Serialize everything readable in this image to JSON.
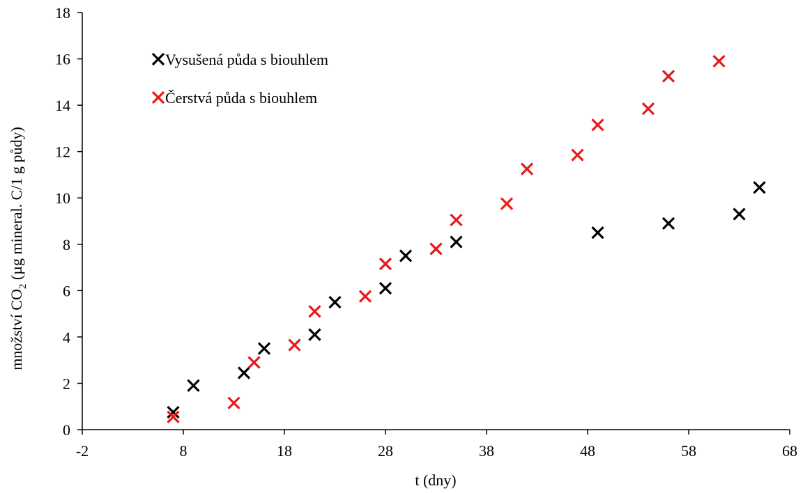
{
  "chart_data": {
    "type": "scatter",
    "xlabel": "t (dny)",
    "ylabel": {
      "prefix": "množství CO",
      "subscript": "2",
      "suffix": " (µg mineral. C/1 g  půdy)"
    },
    "xlim": [
      -2,
      68
    ],
    "ylim": [
      0,
      18
    ],
    "xticks": [
      -2,
      8,
      18,
      28,
      38,
      48,
      58,
      68
    ],
    "yticks": [
      0,
      2,
      4,
      6,
      8,
      10,
      12,
      14,
      16,
      18
    ],
    "grid": false,
    "legend_position": "top-left",
    "marker": "×",
    "series": [
      {
        "name": "Vysušená půda s biouhlem",
        "color": "#000000",
        "points": [
          {
            "x": 7,
            "y": 0.75
          },
          {
            "x": 9,
            "y": 1.9
          },
          {
            "x": 14,
            "y": 2.45
          },
          {
            "x": 16,
            "y": 3.5
          },
          {
            "x": 21,
            "y": 4.1
          },
          {
            "x": 23,
            "y": 5.5
          },
          {
            "x": 28,
            "y": 6.1
          },
          {
            "x": 30,
            "y": 7.5
          },
          {
            "x": 35,
            "y": 8.1
          },
          {
            "x": 49,
            "y": 8.5
          },
          {
            "x": 56,
            "y": 8.9
          },
          {
            "x": 63,
            "y": 9.3
          },
          {
            "x": 65,
            "y": 10.45
          }
        ]
      },
      {
        "name": "Čerstvá půda s biouhlem",
        "color": "#e81919",
        "points": [
          {
            "x": 7,
            "y": 0.55
          },
          {
            "x": 13,
            "y": 1.15
          },
          {
            "x": 15,
            "y": 2.9
          },
          {
            "x": 19,
            "y": 3.65
          },
          {
            "x": 21,
            "y": 5.1
          },
          {
            "x": 26,
            "y": 5.75
          },
          {
            "x": 28,
            "y": 7.15
          },
          {
            "x": 33,
            "y": 7.8
          },
          {
            "x": 35,
            "y": 9.05
          },
          {
            "x": 40,
            "y": 9.75
          },
          {
            "x": 42,
            "y": 11.25
          },
          {
            "x": 47,
            "y": 11.85
          },
          {
            "x": 49,
            "y": 13.15
          },
          {
            "x": 54,
            "y": 13.85
          },
          {
            "x": 56,
            "y": 15.25
          },
          {
            "x": 61,
            "y": 15.9
          }
        ]
      }
    ]
  }
}
